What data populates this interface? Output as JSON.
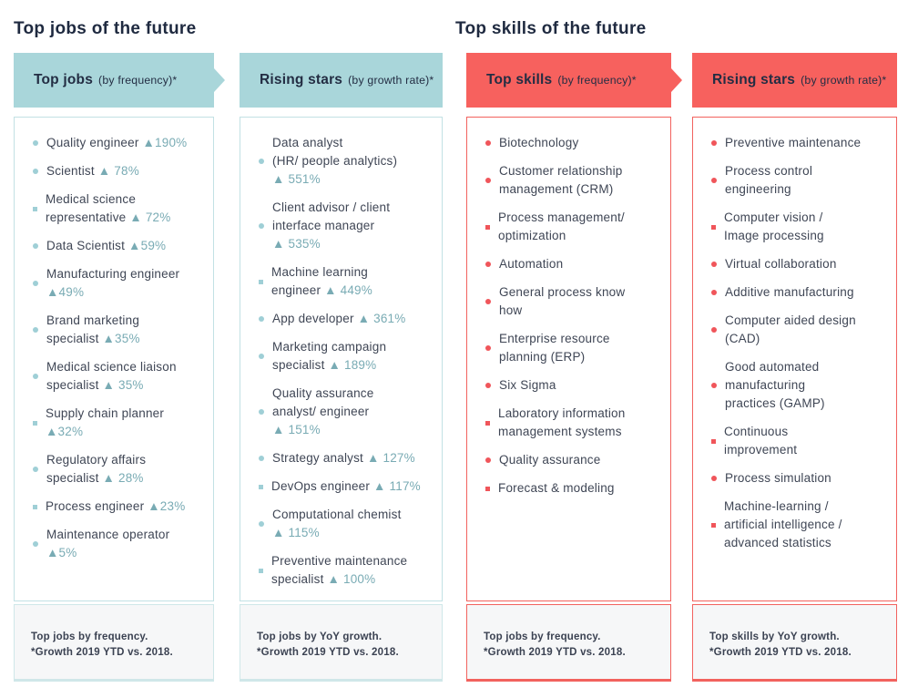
{
  "page": {
    "left_heading": "Top jobs of the future",
    "right_heading": "Top skills of the future"
  },
  "colors": {
    "background": "#ffffff",
    "heading_text": "#1f2a40",
    "header_text": "#232d43",
    "body_text": "#3f4655",
    "note_bg": "#f6f7f8",
    "note_text": "#3b4252",
    "teal_header": "#a9d6da",
    "teal_box_border": "#c2e1e4",
    "teal_bullet": "#9fcfd6",
    "teal_accent": "#79abb4",
    "teal_note_border": "#cfe7e9",
    "red_header": "#f7615e",
    "red_box_border": "#f2625e",
    "red_bullet": "#f0555a"
  },
  "columns": [
    {
      "id": "top-jobs",
      "theme": "teal",
      "header": {
        "title": "Top jobs",
        "subtitle": "(by frequency)*"
      },
      "items": [
        {
          "label": "Quality engineer",
          "growth": "▲190%",
          "bullet": "dot"
        },
        {
          "label": "Scientist",
          "growth": "▲ 78%",
          "bullet": "dot"
        },
        {
          "label": "Medical science\nrepresentative",
          "growth": "▲ 72%",
          "bullet": "square"
        },
        {
          "label": "Data Scientist",
          "growth": "▲59%",
          "bullet": "dot"
        },
        {
          "label": "Manufacturing engineer",
          "growth": "\n▲49%",
          "bullet": "dot"
        },
        {
          "label": "Brand marketing\nspecialist",
          "growth": "▲35%",
          "bullet": "dot"
        },
        {
          "label": "Medical science liaison\nspecialist",
          "growth": "▲ 35%",
          "bullet": "dot"
        },
        {
          "label": "Supply chain planner",
          "growth": "\n▲32%",
          "bullet": "square"
        },
        {
          "label": "Regulatory affairs\nspecialist",
          "growth": "▲ 28%",
          "bullet": "dot"
        },
        {
          "label": "Process engineer",
          "growth": "▲23%",
          "bullet": "square"
        },
        {
          "label": "Maintenance operator",
          "growth": "\n▲5%",
          "bullet": "dot"
        }
      ],
      "note": {
        "line1": "Top jobs by frequency.",
        "line2": "*Growth 2019 YTD vs. 2018."
      }
    },
    {
      "id": "rising-star-jobs",
      "theme": "teal",
      "header": {
        "title": "Rising stars",
        "subtitle": "(by growth rate)*"
      },
      "items": [
        {
          "label": "Data analyst\n(HR/ people analytics)",
          "growth": "\n▲ 551%",
          "bullet": "dot"
        },
        {
          "label": "Client advisor / client\ninterface manager",
          "growth": "\n▲ 535%",
          "bullet": "dot"
        },
        {
          "label": "Machine learning\nengineer",
          "growth": "▲ 449%",
          "bullet": "square"
        },
        {
          "label": "App developer",
          "growth": "▲ 361%",
          "bullet": "dot"
        },
        {
          "label": "Marketing campaign\nspecialist",
          "growth": "▲ 189%",
          "bullet": "dot"
        },
        {
          "label": "Quality assurance\nanalyst/ engineer",
          "growth": "\n▲ 151%",
          "bullet": "dot"
        },
        {
          "label": "Strategy analyst",
          "growth": "▲ 127%",
          "bullet": "dot"
        },
        {
          "label": "DevOps engineer",
          "growth": "▲ 117%",
          "bullet": "square"
        },
        {
          "label": "Computational chemist",
          "growth": "\n▲ 115%",
          "bullet": "dot"
        },
        {
          "label": "Preventive maintenance\nspecialist",
          "growth": "▲ 100%",
          "bullet": "square"
        }
      ],
      "note": {
        "line1": "Top jobs by YoY growth.",
        "line2": "*Growth 2019 YTD vs. 2018."
      }
    },
    {
      "id": "top-skills",
      "theme": "red",
      "header": {
        "title": "Top skills",
        "subtitle": "(by frequency)*"
      },
      "items": [
        {
          "label": "Biotechnology",
          "bullet": "dot"
        },
        {
          "label": "Customer relationship\nmanagement (CRM)",
          "bullet": "dot"
        },
        {
          "label": "Process management/\noptimization",
          "bullet": "square"
        },
        {
          "label": "Automation",
          "bullet": "dot"
        },
        {
          "label": "General process know\nhow",
          "bullet": "dot"
        },
        {
          "label": "Enterprise resource\nplanning (ERP)",
          "bullet": "dot"
        },
        {
          "label": "Six Sigma",
          "bullet": "dot"
        },
        {
          "label": "Laboratory information\nmanagement systems",
          "bullet": "square"
        },
        {
          "label": "Quality assurance",
          "bullet": "dot"
        },
        {
          "label": "Forecast & modeling",
          "bullet": "square"
        }
      ],
      "note": {
        "line1": "Top jobs by frequency.",
        "line2": "*Growth 2019 YTD vs. 2018."
      }
    },
    {
      "id": "rising-star-skills",
      "theme": "red",
      "header": {
        "title": "Rising stars",
        "subtitle": "(by growth rate)*"
      },
      "items": [
        {
          "label": "Preventive maintenance",
          "bullet": "dot"
        },
        {
          "label": "Process control\nengineering",
          "bullet": "dot"
        },
        {
          "label": "Computer vision /\nImage processing",
          "bullet": "square"
        },
        {
          "label": "Virtual collaboration",
          "bullet": "dot"
        },
        {
          "label": "Additive manufacturing",
          "bullet": "dot"
        },
        {
          "label": "Computer aided design\n(CAD)",
          "bullet": "dot"
        },
        {
          "label": "Good automated\nmanufacturing\npractices (GAMP)",
          "bullet": "dot"
        },
        {
          "label": "Continuous\nimprovement",
          "bullet": "square"
        },
        {
          "label": "Process simulation",
          "bullet": "dot"
        },
        {
          "label": "Machine-learning /\nartificial intelligence /\nadvanced statistics",
          "bullet": "square"
        }
      ],
      "note": {
        "line1": "Top skills by YoY growth.",
        "line2": "*Growth 2019 YTD vs. 2018."
      }
    }
  ]
}
